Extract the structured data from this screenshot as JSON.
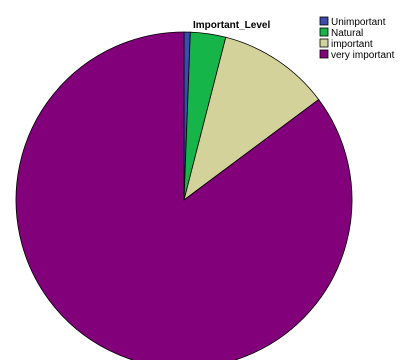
{
  "chart_data": {
    "type": "pie",
    "title": "",
    "legend_title": "Important_Level",
    "legend_position": "top-right",
    "start_angle_deg": 0,
    "direction": "clockwise",
    "slices": [
      {
        "label": "Unimportant",
        "value": 0.6,
        "color": "#3d4bb0"
      },
      {
        "label": "Natural",
        "value": 3.4,
        "color": "#16b54a"
      },
      {
        "label": "important",
        "value": 10.8,
        "color": "#d2d29a"
      },
      {
        "label": "very important",
        "value": 85.2,
        "color": "#82007a"
      }
    ]
  }
}
